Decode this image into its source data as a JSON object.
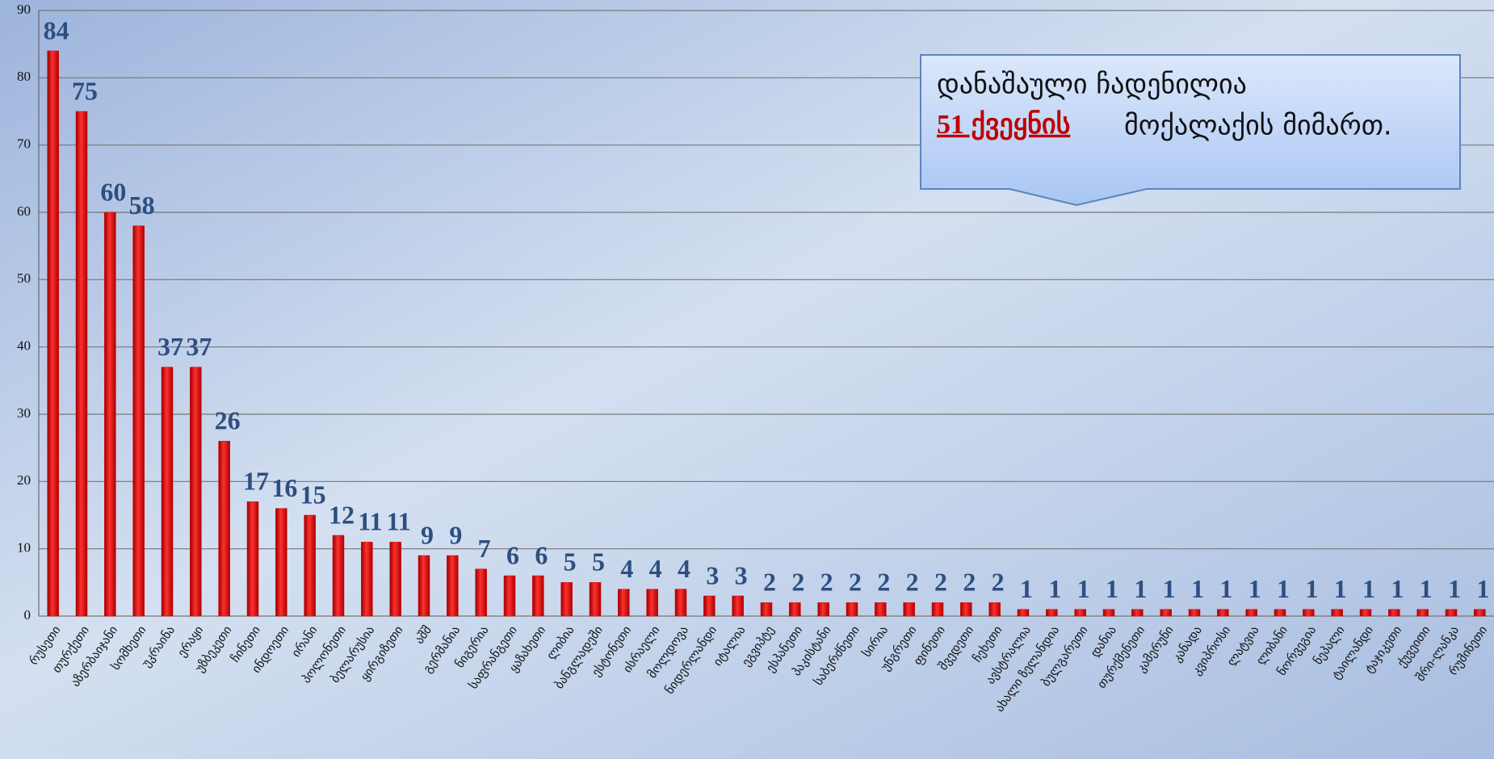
{
  "chart_data": {
    "type": "bar",
    "categories": [
      "რუსეთი",
      "თურქეთი",
      "აზერბაიჯანი",
      "სომხეთი",
      "უკრაინა",
      "ერაყი",
      "უზბეკეთი",
      "ჩინეთი",
      "ინდოეთი",
      "ირანი",
      "პოლონეთი",
      "ბელარუსია",
      "ყირგიზეთი",
      "აშშ",
      "გერმანია",
      "ნიგერია",
      "საფრანგეთი",
      "ყაზახეთი",
      "ლიბია",
      "ბანგლადეში",
      "ესტონეთი",
      "ისრაელი",
      "მოლდოვა",
      "ნიდერლანდი",
      "იტალია",
      "ეგვიპტე",
      "ესპანეთი",
      "პაკისტანი",
      "საბერძნეთი",
      "სირია",
      "უნგრეთი",
      "ფინეთი",
      "შვედეთი",
      "ჩეხეთი",
      "ავსტრალია",
      "ახალი ზელანდია",
      "ბულგარეთი",
      "დანია",
      "თურქმენეთი",
      "კამერუნი",
      "კანადა",
      "კვიპროსი",
      "ლატვია",
      "ლიბანი",
      "ნორვეგია",
      "ნეპალი",
      "ტაილანდი",
      "ტაჯიკეთი",
      "ქუვეითი",
      "შრი-ლანკა",
      "რუმინეთი"
    ],
    "values": [
      84,
      75,
      60,
      58,
      37,
      37,
      26,
      17,
      16,
      15,
      12,
      11,
      11,
      9,
      9,
      7,
      6,
      6,
      5,
      5,
      4,
      4,
      4,
      3,
      3,
      2,
      2,
      2,
      2,
      2,
      2,
      2,
      2,
      2,
      1,
      1,
      1,
      1,
      1,
      1,
      1,
      1,
      1,
      1,
      1,
      1,
      1,
      1,
      1,
      1,
      1
    ],
    "color": "#e00000",
    "label_color": "#2d4f80",
    "ylim": [
      0,
      90
    ],
    "yticks": [
      0,
      10,
      20,
      30,
      40,
      50,
      60,
      70,
      80,
      90
    ],
    "grid": true,
    "annotation": {
      "line1": "დანაშაული ჩადენილია",
      "highlight": "51 ქვეყნის",
      "line2": "მოქალაქის მიმართ."
    }
  }
}
